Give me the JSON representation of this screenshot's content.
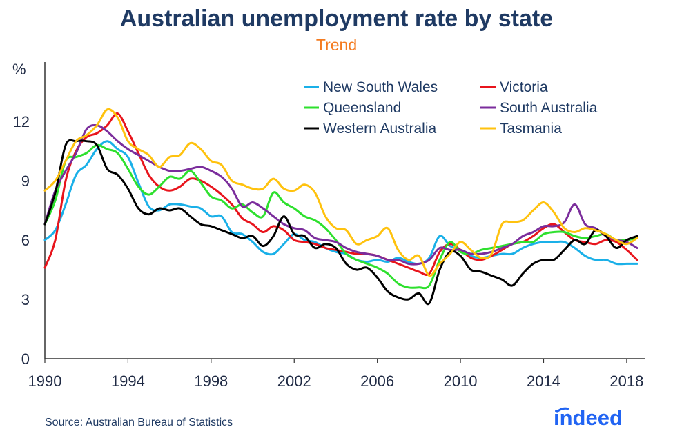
{
  "header": {
    "title": "Australian unemployment rate by state",
    "subtitle": "Trend"
  },
  "footer": {
    "source": "Source: Australian Bureau of Statistics",
    "logo_text": "indeed"
  },
  "colors": {
    "title": "#1f3a63",
    "subtitle": "#f47b20",
    "logo": "#2164f3"
  },
  "chart_data": {
    "type": "line",
    "title": "Australian unemployment rate by state",
    "subtitle": "Trend",
    "ylabel": "%",
    "xlabel": "",
    "xlim": [
      1990,
      2018.9
    ],
    "ylim": [
      0,
      15
    ],
    "x_ticks": [
      1990,
      1994,
      1998,
      2002,
      2006,
      2010,
      2014,
      2018
    ],
    "y_ticks": [
      0,
      3,
      6,
      9,
      12
    ],
    "grid": false,
    "legend_position": "top-right",
    "series": [
      {
        "name": "New South Wales",
        "color": "#1ab0e8",
        "x": [
          1990,
          1990.5,
          1991,
          1991.5,
          1992,
          1992.5,
          1993,
          1993.5,
          1994,
          1994.5,
          1995,
          1995.5,
          1996,
          1996.5,
          1997,
          1997.5,
          1998,
          1998.5,
          1999,
          1999.5,
          2000,
          2000.5,
          2001,
          2001.5,
          2002,
          2002.5,
          2003,
          2003.5,
          2004,
          2004.5,
          2005,
          2005.5,
          2006,
          2006.5,
          2007,
          2007.5,
          2008,
          2008.5,
          2009,
          2009.5,
          2010,
          2010.5,
          2011,
          2011.5,
          2012,
          2012.5,
          2013,
          2013.5,
          2014,
          2014.5,
          2015,
          2015.5,
          2016,
          2016.5,
          2017,
          2017.5,
          2018,
          2018.5
        ],
        "values": [
          6.0,
          6.5,
          7.8,
          9.3,
          9.8,
          10.6,
          11.0,
          10.6,
          10.2,
          8.9,
          7.7,
          7.5,
          7.8,
          7.8,
          7.7,
          7.6,
          7.2,
          7.2,
          6.4,
          6.3,
          5.9,
          5.4,
          5.3,
          5.8,
          6.3,
          6.0,
          5.9,
          5.6,
          5.4,
          5.3,
          5.0,
          4.9,
          5.0,
          4.9,
          5.1,
          4.9,
          4.8,
          5.1,
          6.2,
          5.7,
          5.5,
          5.2,
          5.1,
          5.2,
          5.3,
          5.3,
          5.6,
          5.8,
          5.9,
          5.9,
          5.9,
          5.6,
          5.2,
          5.0,
          5.0,
          4.8,
          4.8,
          4.8
        ]
      },
      {
        "name": "Victoria",
        "color": "#e8141c",
        "x": [
          1990,
          1990.5,
          1991,
          1991.5,
          1992,
          1992.5,
          1993,
          1993.5,
          1994,
          1994.5,
          1995,
          1995.5,
          1996,
          1996.5,
          1997,
          1997.5,
          1998,
          1998.5,
          1999,
          1999.5,
          2000,
          2000.5,
          2001,
          2001.5,
          2002,
          2002.5,
          2003,
          2003.5,
          2004,
          2004.5,
          2005,
          2005.5,
          2006,
          2006.5,
          2007,
          2007.5,
          2008,
          2008.5,
          2009,
          2009.5,
          2010,
          2010.5,
          2011,
          2011.5,
          2012,
          2012.5,
          2013,
          2013.5,
          2014,
          2014.5,
          2015,
          2015.5,
          2016,
          2016.5,
          2017,
          2017.5,
          2018,
          2018.5
        ],
        "values": [
          4.6,
          6.0,
          9.0,
          10.5,
          11.2,
          11.4,
          11.8,
          12.4,
          11.5,
          10.4,
          9.3,
          8.7,
          8.5,
          8.7,
          9.1,
          9.0,
          8.7,
          8.3,
          7.8,
          7.1,
          6.8,
          6.4,
          6.7,
          6.5,
          6.0,
          5.9,
          5.8,
          5.6,
          5.5,
          5.4,
          5.3,
          5.3,
          5.2,
          5.0,
          4.8,
          4.6,
          4.4,
          4.3,
          5.4,
          5.8,
          5.5,
          5.1,
          5.0,
          5.2,
          5.5,
          5.8,
          5.9,
          6.2,
          6.6,
          6.8,
          6.4,
          6.0,
          5.9,
          5.8,
          6.0,
          5.9,
          5.5,
          5.0
        ]
      },
      {
        "name": "Queensland",
        "color": "#2ee02e",
        "x": [
          1990,
          1990.5,
          1991,
          1991.5,
          1992,
          1992.5,
          1993,
          1993.5,
          1994,
          1994.5,
          1995,
          1995.5,
          1996,
          1996.5,
          1997,
          1997.5,
          1998,
          1998.5,
          1999,
          1999.5,
          2000,
          2000.5,
          2001,
          2001.5,
          2002,
          2002.5,
          2003,
          2003.5,
          2004,
          2004.5,
          2005,
          2005.5,
          2006,
          2006.5,
          2007,
          2007.5,
          2008,
          2008.5,
          2009,
          2009.5,
          2010,
          2010.5,
          2011,
          2011.5,
          2012,
          2012.5,
          2013,
          2013.5,
          2014,
          2014.5,
          2015,
          2015.5,
          2016,
          2016.5,
          2017,
          2017.5,
          2018,
          2018.5
        ],
        "values": [
          6.8,
          8.0,
          10.0,
          10.2,
          10.4,
          10.8,
          10.6,
          10.4,
          9.6,
          8.7,
          8.3,
          8.7,
          9.2,
          9.1,
          9.5,
          8.9,
          8.2,
          8.0,
          7.6,
          7.8,
          7.4,
          7.2,
          8.4,
          7.9,
          7.6,
          7.2,
          7.0,
          6.6,
          6.0,
          5.3,
          5.0,
          4.8,
          4.6,
          4.3,
          3.8,
          3.6,
          3.6,
          3.7,
          5.0,
          5.9,
          5.4,
          5.3,
          5.5,
          5.6,
          5.7,
          5.8,
          5.9,
          5.9,
          6.3,
          6.4,
          6.4,
          6.2,
          6.1,
          6.2,
          6.3,
          6.0,
          6.0,
          6.1
        ]
      },
      {
        "name": "South Australia",
        "color": "#7b2d9c",
        "x": [
          1990,
          1990.5,
          1991,
          1991.5,
          1992,
          1992.5,
          1993,
          1993.5,
          1994,
          1994.5,
          1995,
          1995.5,
          1996,
          1996.5,
          1997,
          1997.5,
          1998,
          1998.5,
          1999,
          1999.5,
          2000,
          2000.5,
          2001,
          2001.5,
          2002,
          2002.5,
          2003,
          2003.5,
          2004,
          2004.5,
          2005,
          2005.5,
          2006,
          2006.5,
          2007,
          2007.5,
          2008,
          2008.5,
          2009,
          2009.5,
          2010,
          2010.5,
          2011,
          2011.5,
          2012,
          2012.5,
          2013,
          2013.5,
          2014,
          2014.5,
          2015,
          2015.5,
          2016,
          2016.5,
          2017,
          2017.5,
          2018,
          2018.5
        ],
        "values": [
          6.8,
          8.5,
          9.5,
          10.4,
          11.6,
          11.8,
          11.5,
          11.0,
          10.6,
          10.3,
          10.0,
          9.7,
          9.5,
          9.5,
          9.6,
          9.7,
          9.5,
          9.2,
          8.6,
          7.7,
          7.9,
          7.6,
          7.2,
          6.8,
          6.6,
          6.5,
          6.1,
          6.0,
          5.9,
          5.6,
          5.4,
          5.3,
          5.2,
          5.0,
          5.0,
          4.8,
          4.8,
          5.0,
          5.6,
          5.5,
          5.5,
          5.3,
          5.3,
          5.4,
          5.6,
          5.8,
          6.2,
          6.4,
          6.7,
          6.7,
          6.9,
          7.8,
          6.8,
          6.6,
          6.2,
          6.0,
          5.9,
          5.6
        ]
      },
      {
        "name": "Western Australia",
        "color": "#000000",
        "x": [
          1990,
          1990.5,
          1991,
          1991.5,
          1992,
          1992.5,
          1993,
          1993.5,
          1994,
          1994.5,
          1995,
          1995.5,
          1996,
          1996.5,
          1997,
          1997.5,
          1998,
          1998.5,
          1999,
          1999.5,
          2000,
          2000.5,
          2001,
          2001.5,
          2002,
          2002.5,
          2003,
          2003.5,
          2004,
          2004.5,
          2005,
          2005.5,
          2006,
          2006.5,
          2007,
          2007.5,
          2008,
          2008.5,
          2009,
          2009.5,
          2010,
          2010.5,
          2011,
          2011.5,
          2012,
          2012.5,
          2013,
          2013.5,
          2014,
          2014.5,
          2015,
          2015.5,
          2016,
          2016.5,
          2017,
          2017.5,
          2018,
          2018.5
        ],
        "values": [
          6.8,
          8.4,
          10.8,
          11.0,
          11.0,
          10.8,
          9.6,
          9.3,
          8.6,
          7.6,
          7.3,
          7.6,
          7.5,
          7.6,
          7.2,
          6.8,
          6.7,
          6.5,
          6.3,
          6.1,
          6.2,
          5.7,
          6.2,
          7.2,
          6.3,
          6.2,
          5.6,
          5.8,
          5.6,
          4.8,
          4.5,
          4.6,
          4.1,
          3.4,
          3.1,
          3.0,
          3.3,
          2.8,
          4.5,
          5.4,
          5.2,
          4.5,
          4.4,
          4.2,
          4.0,
          3.7,
          4.3,
          4.8,
          5.0,
          5.0,
          5.5,
          6.0,
          5.8,
          6.5,
          6.2,
          5.6,
          6.0,
          6.2
        ]
      },
      {
        "name": "Tasmania",
        "color": "#ffc20e",
        "x": [
          1990,
          1990.5,
          1991,
          1991.5,
          1992,
          1992.5,
          1993,
          1993.5,
          1994,
          1994.5,
          1995,
          1995.5,
          1996,
          1996.5,
          1997,
          1997.5,
          1998,
          1998.5,
          1999,
          1999.5,
          2000,
          2000.5,
          2001,
          2001.5,
          2002,
          2002.5,
          2003,
          2003.5,
          2004,
          2004.5,
          2005,
          2005.5,
          2006,
          2006.5,
          2007,
          2007.5,
          2008,
          2008.5,
          2009,
          2009.5,
          2010,
          2010.5,
          2011,
          2011.5,
          2012,
          2012.5,
          2013,
          2013.5,
          2014,
          2014.5,
          2015,
          2015.5,
          2016,
          2016.5,
          2017,
          2017.5,
          2018,
          2018.5
        ],
        "values": [
          8.5,
          9.0,
          10.0,
          11.0,
          11.3,
          11.8,
          12.6,
          12.2,
          11.0,
          10.6,
          10.3,
          9.7,
          10.2,
          10.3,
          10.9,
          10.6,
          10.0,
          9.8,
          9.0,
          8.8,
          8.6,
          8.6,
          9.1,
          8.6,
          8.5,
          8.8,
          8.4,
          7.2,
          6.6,
          6.5,
          5.8,
          6.0,
          6.2,
          6.6,
          5.5,
          5.0,
          5.2,
          4.2,
          4.8,
          5.3,
          5.9,
          5.5,
          5.1,
          5.3,
          6.8,
          6.9,
          7.0,
          7.5,
          7.9,
          7.4,
          6.6,
          6.4,
          6.6,
          6.5,
          6.3,
          6.0,
          5.8,
          6.1
        ]
      }
    ]
  }
}
